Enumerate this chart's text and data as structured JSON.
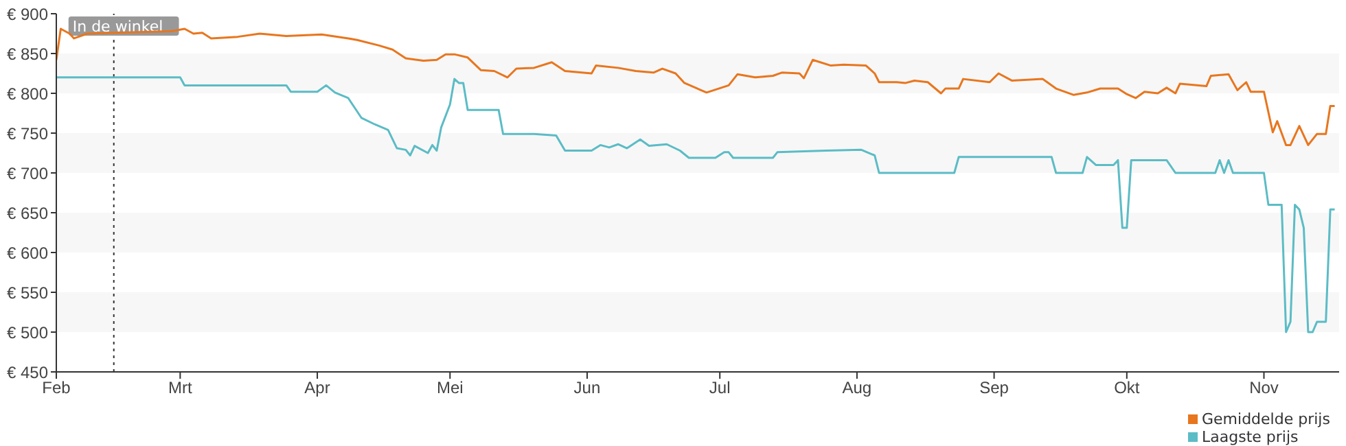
{
  "chart_data": {
    "type": "line",
    "legend": "bottom right",
    "bands": [
      {
        "axis": "y",
        "from": 800,
        "to": 850,
        "color": "#f7f7f7"
      },
      {
        "axis": "y",
        "from": 700,
        "to": 750,
        "color": "#f7f7f7"
      },
      {
        "axis": "y",
        "from": 600,
        "to": 650,
        "color": "#f7f7f7"
      },
      {
        "axis": "y",
        "from": 500,
        "to": 550,
        "color": "#f7f7f7"
      }
    ],
    "marker": "none",
    "line_style": "solid",
    "xlim": [
      "--02-01",
      "--11-18"
    ],
    "xticks": [
      {
        "value": "--02-01",
        "label": "Feb"
      },
      {
        "value": "--03-01",
        "label": "Mrt"
      },
      {
        "value": "--04-01",
        "label": "Apr"
      },
      {
        "value": "--05-01",
        "label": "Mei"
      },
      {
        "value": "--06-01",
        "label": "Jun"
      },
      {
        "value": "--07-01",
        "label": "Jul"
      },
      {
        "value": "--08-01",
        "label": "Aug"
      },
      {
        "value": "--09-01",
        "label": "Sep"
      },
      {
        "value": "--10-01",
        "label": "Okt"
      },
      {
        "value": "--11-01",
        "label": "Nov"
      }
    ],
    "ylim": [
      450,
      900
    ],
    "yticks": [
      {
        "value": 450,
        "label": "€ 450"
      },
      {
        "value": 500,
        "label": "€ 500"
      },
      {
        "value": 550,
        "label": "€ 550"
      },
      {
        "value": 600,
        "label": "€ 600"
      },
      {
        "value": 650,
        "label": "€ 650"
      },
      {
        "value": 700,
        "label": "€ 700"
      },
      {
        "value": 750,
        "label": "€ 750"
      },
      {
        "value": 800,
        "label": "€ 800"
      },
      {
        "value": 850,
        "label": "€ 850"
      },
      {
        "value": 900,
        "label": "€ 900"
      }
    ],
    "ref_lines": [
      {
        "axis": "x",
        "value": "--02-14",
        "label": "In de winkel",
        "line_style": "dotted",
        "color": "#333333"
      }
    ],
    "series": [
      {
        "name": "Gemiddelde prijs",
        "color": "#e8761e",
        "x": [
          "--02-01",
          "--02-02",
          "--02-04",
          "--02-05",
          "--02-08",
          "--02-14",
          "--02-27",
          "--03-02",
          "--03-04",
          "--03-06",
          "--03-08",
          "--03-14",
          "--03-19",
          "--03-25",
          "--04-02",
          "--04-08",
          "--04-10",
          "--04-15",
          "--04-18",
          "--04-21",
          "--04-25",
          "--04-28",
          "--04-30",
          "--05-02",
          "--05-05",
          "--05-08",
          "--05-11",
          "--05-14",
          "--05-16",
          "--05-20",
          "--05-24",
          "--05-27",
          "--06-02",
          "--06-03",
          "--06-08",
          "--06-12",
          "--06-16",
          "--06-18",
          "--06-21",
          "--06-23",
          "--06-28",
          "--07-03",
          "--07-05",
          "--07-09",
          "--07-13",
          "--07-15",
          "--07-19",
          "--07-20",
          "--07-22",
          "--07-26",
          "--07-29",
          "--08-03",
          "--08-05",
          "--08-06",
          "--08-10",
          "--08-12",
          "--08-14",
          "--08-17",
          "--08-20",
          "--08-21",
          "--08-24",
          "--08-25",
          "--08-31",
          "--09-02",
          "--09-05",
          "--09-12",
          "--09-15",
          "--09-19",
          "--09-22",
          "--09-25",
          "--09-29",
          "--10-01",
          "--10-03",
          "--10-05",
          "--10-08",
          "--10-10",
          "--10-12",
          "--10-13",
          "--10-19",
          "--10-20",
          "--10-24",
          "--10-26",
          "--10-28",
          "--10-29",
          "--11-01",
          "--11-03",
          "--11-04",
          "--11-06",
          "--11-07",
          "--11-09",
          "--11-11",
          "--11-13",
          "--11-15",
          "--11-16",
          "--11-17"
        ],
        "values": [
          842,
          881,
          875,
          869,
          875,
          876,
          878,
          881,
          875,
          876,
          869,
          871,
          875,
          872,
          874,
          869,
          867,
          860,
          855,
          844,
          841,
          842,
          849,
          849,
          845,
          829,
          828,
          820,
          831,
          832,
          839,
          828,
          825,
          835,
          832,
          828,
          826,
          831,
          825,
          813,
          801,
          810,
          824,
          820,
          822,
          826,
          825,
          819,
          842,
          835,
          836,
          835,
          825,
          814,
          814,
          813,
          816,
          814,
          800,
          806,
          806,
          818,
          814,
          825,
          816,
          818,
          806,
          798,
          801,
          806,
          806,
          799,
          794,
          802,
          800,
          807,
          800,
          812,
          809,
          822,
          824,
          804,
          814,
          802,
          802,
          751,
          765,
          735,
          735,
          759,
          735,
          749,
          749,
          784,
          784
        ]
      },
      {
        "name": "Laagste prijs",
        "color": "#5bbcc5",
        "x": [
          "--02-01",
          "--03-01",
          "--03-02",
          "--03-25",
          "--03-26",
          "--04-01",
          "--04-03",
          "--04-05",
          "--04-08",
          "--04-11",
          "--04-14",
          "--04-17",
          "--04-19",
          "--04-21",
          "--04-22",
          "--04-23",
          "--04-26",
          "--04-27",
          "--04-28",
          "--04-29",
          "--05-01",
          "--05-02",
          "--05-03",
          "--05-04",
          "--05-05",
          "--05-12",
          "--05-13",
          "--05-20",
          "--05-25",
          "--05-27",
          "--06-02",
          "--06-04",
          "--06-06",
          "--06-08",
          "--06-10",
          "--06-13",
          "--06-15",
          "--06-19",
          "--06-22",
          "--06-24",
          "--06-30",
          "--07-02",
          "--07-03",
          "--07-04",
          "--07-13",
          "--07-14",
          "--07-25",
          "--08-02",
          "--08-05",
          "--08-06",
          "--08-23",
          "--08-24",
          "--09-14",
          "--09-15",
          "--09-21",
          "--09-22",
          "--09-24",
          "--09-28",
          "--09-29",
          "--09-30",
          "--10-01",
          "--10-02",
          "--10-10",
          "--10-12",
          "--10-21",
          "--10-22",
          "--10-23",
          "--10-24",
          "--10-25",
          "--11-01",
          "--11-02",
          "--11-05",
          "--11-06",
          "--11-07",
          "--11-08",
          "--11-09",
          "--11-10",
          "--11-11",
          "--11-12",
          "--11-13",
          "--11-15",
          "--11-16",
          "--11-17"
        ],
        "values": [
          820,
          820,
          810,
          810,
          802,
          802,
          810,
          801,
          794,
          769,
          761,
          754,
          731,
          729,
          722,
          734,
          725,
          735,
          728,
          757,
          786,
          818,
          813,
          813,
          779,
          779,
          749,
          749,
          747,
          728,
          728,
          735,
          732,
          736,
          731,
          742,
          734,
          736,
          728,
          719,
          719,
          726,
          726,
          719,
          719,
          726,
          728,
          729,
          722,
          700,
          700,
          720,
          720,
          700,
          700,
          720,
          710,
          710,
          716,
          631,
          631,
          716,
          716,
          700,
          700,
          716,
          700,
          716,
          700,
          700,
          660,
          660,
          500,
          513,
          660,
          654,
          631,
          500,
          500,
          513,
          513,
          654,
          654
        ]
      }
    ]
  }
}
